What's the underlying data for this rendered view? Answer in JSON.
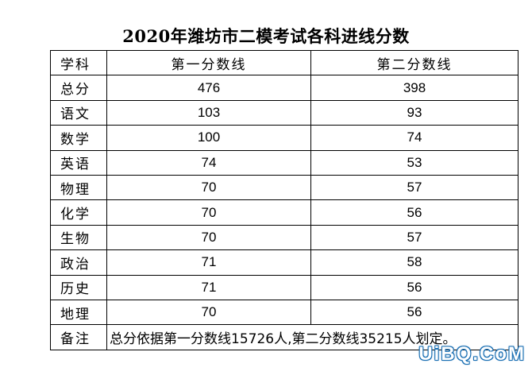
{
  "title": "2020年潍坊市二模考试各科进线分数",
  "table": {
    "headers": [
      "学科",
      "第一分数线",
      "第二分数线"
    ],
    "rows": [
      {
        "subject": "总分",
        "first": "476",
        "second": "398"
      },
      {
        "subject": "语文",
        "first": "103",
        "second": "93"
      },
      {
        "subject": "数学",
        "first": "100",
        "second": "74"
      },
      {
        "subject": "英语",
        "first": "74",
        "second": "53"
      },
      {
        "subject": "物理",
        "first": "70",
        "second": "57"
      },
      {
        "subject": "化学",
        "first": "70",
        "second": "56"
      },
      {
        "subject": "生物",
        "first": "70",
        "second": "57"
      },
      {
        "subject": "政治",
        "first": "71",
        "second": "58"
      },
      {
        "subject": "历史",
        "first": "71",
        "second": "56"
      },
      {
        "subject": "地理",
        "first": "70",
        "second": "56"
      }
    ],
    "note_label": "备注",
    "note_text": "总分依据第一分数线15726人,第二分数线35215人划定。"
  },
  "watermark": "UiBQ.CoM"
}
